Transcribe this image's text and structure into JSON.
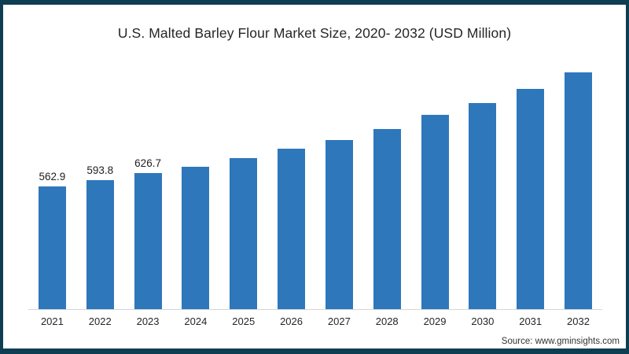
{
  "frame": {
    "border_color": "#0e3e52",
    "background": "#ffffff"
  },
  "chart_data": {
    "type": "bar",
    "title": "U.S. Malted Barley Flour Market Size, 2020- 2032 (USD Million)",
    "categories": [
      "2021",
      "2022",
      "2023",
      "2024",
      "2025",
      "2026",
      "2027",
      "2028",
      "2029",
      "2030",
      "2031",
      "2032"
    ],
    "values": [
      562.9,
      593.8,
      626.7,
      656,
      695,
      738,
      778,
      829,
      893,
      947,
      1012,
      1088
    ],
    "data_labels": [
      "562.9",
      "593.8",
      "626.7",
      "",
      "",
      "",
      "",
      "",
      "",
      "",
      "",
      ""
    ],
    "xlabel": "",
    "ylabel": "",
    "ylim": [
      0,
      1150
    ],
    "grid": false,
    "legend": false,
    "bar_color": "#2f77bb",
    "axis_line_color": "#d6d6d6",
    "title_color": "#262626",
    "label_color": "#1f1f1f"
  },
  "footer": {
    "source_label": "Source: www.gminsights.com"
  }
}
